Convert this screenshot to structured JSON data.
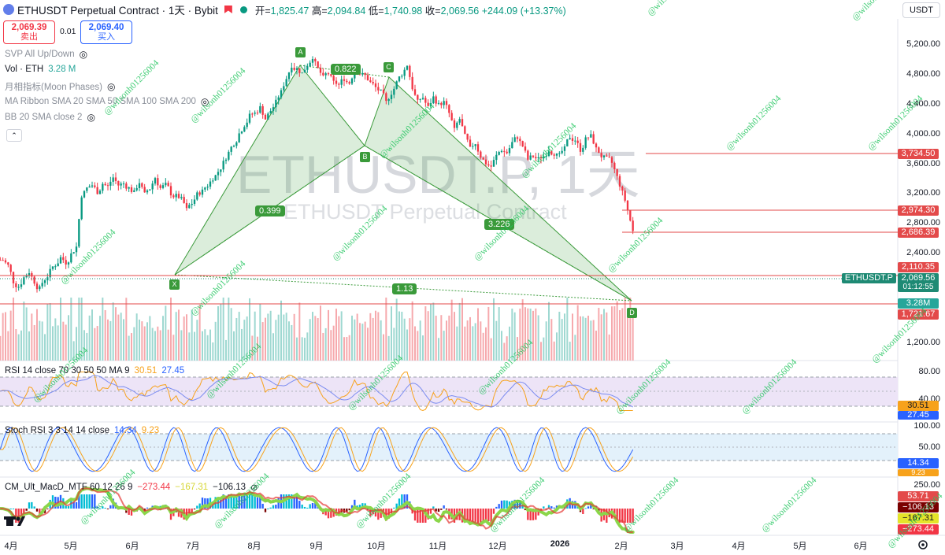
{
  "header": {
    "symbol": "ETHUSDT Perpetual Contract · 1天 · Bybit",
    "open_label": "开=",
    "open": "1,825.47",
    "high_label": "高=",
    "high": "2,094.84",
    "low_label": "低=",
    "low": "1,740.98",
    "close_label": "收=",
    "close": "2,069.56",
    "change": "+244.09 (+13.37%)",
    "currency": "USDT"
  },
  "order": {
    "sell_price": "2,069.39",
    "sell_label": "卖出",
    "spread": "0.01",
    "buy_price": "2,069.40",
    "buy_label": "买入"
  },
  "indicators": {
    "svp": "SVP All Up/Down",
    "vol_label": "Vol · ETH",
    "vol_value": "3.28 M",
    "moon": "月相指标(Moon Phases)",
    "ribbon": "MA Ribbon SMA 20 SMA 50 SMA 100 SMA 200",
    "bb": "BB 20 SMA close 2",
    "rsi_label": "RSI 14 close 70 30 50 50 MA 9",
    "rsi_v1": "30.51",
    "rsi_v2": "27.45",
    "stoch_label": "Stoch RSI 3 3 14 14 close",
    "stoch_v1": "14.34",
    "stoch_v2": "9.23",
    "macd_label": "CM_Ult_MacD_MTF 60 12 26 9",
    "macd_v1": "−273.44",
    "macd_v2": "−167.31",
    "macd_v3": "−106.13"
  },
  "watermark": {
    "big": "ETHUSDT.P, 1天",
    "small": "ETHUSDT Perpetual Contract",
    "user": "@wilsonh01256004"
  },
  "harmonic": {
    "points": [
      "X",
      "A",
      "B",
      "C",
      "D"
    ],
    "ratios": [
      "0.399",
      "0.822",
      "3.226",
      "1.13"
    ]
  },
  "price_axis": [
    "5,200.00",
    "4,800.00",
    "4,400.00",
    "4,000.00",
    "3,600.00",
    "3,200.00",
    "2,800.00",
    "2,400.00",
    "1,200.00"
  ],
  "price_tags": {
    "t1": "3,734.50",
    "t2": "2,974.30",
    "t3": "2,686.39",
    "t4": "2,110.35",
    "current_symbol": "ETHUSDT.P",
    "current": "2,069.56",
    "countdown": "01:12:55",
    "volume": "3.28M",
    "t5": "1,721.67"
  },
  "rsi_axis": [
    "80.00",
    "40.00"
  ],
  "rsi_tags": [
    "30.51",
    "27.45"
  ],
  "stoch_axis": [
    "100.00",
    "50.00"
  ],
  "stoch_tags": [
    "14.34",
    "9.23"
  ],
  "macd_axis": [
    "250.00"
  ],
  "macd_tags": [
    "53.71",
    "−106.13",
    "−167.31",
    "−273.44"
  ],
  "months": [
    "4月",
    "5月",
    "6月",
    "7月",
    "8月",
    "9月",
    "10月",
    "11月",
    "12月",
    "2026",
    "2月",
    "3月",
    "4月",
    "5月",
    "6月"
  ],
  "colors": {
    "up": "#089981",
    "down": "#f23645",
    "pattern": "#3a9a3a",
    "line_red": "#e34a4a"
  },
  "chart_data": {
    "type": "candlestick",
    "ohlc_current": {
      "open": 1825.47,
      "high": 2094.84,
      "low": 1740.98,
      "close": 2069.56
    },
    "close_path": [
      1800,
      1750,
      1620,
      1580,
      1650,
      1700,
      1620,
      1560,
      1640,
      1700,
      1760,
      1820,
      1780,
      1850,
      1920,
      2480,
      2560,
      2600,
      2520,
      2620,
      2580,
      2700,
      2600,
      2620,
      2560,
      2500,
      2640,
      2480,
      2560,
      2700,
      2560,
      2600,
      2500,
      2460,
      2420,
      2300,
      2380,
      2480,
      2520,
      2600,
      2700,
      2780,
      2900,
      3050,
      3200,
      3350,
      3500,
      3650,
      3700,
      3800,
      3600,
      3750,
      3900,
      4100,
      4400,
      4700,
      4600,
      4500,
      4700,
      4900,
      4600,
      4400,
      4500,
      4300,
      4250,
      4400,
      4300,
      4600,
      4500,
      4450,
      4300,
      4200,
      4100,
      3900,
      4100,
      4300,
      4500,
      4700,
      4200,
      3900,
      4000,
      3800,
      4000,
      3850,
      3900,
      3700,
      3400,
      3600,
      3300,
      3100,
      3200,
      3000,
      2900,
      2850,
      3000,
      3100,
      3050,
      3200,
      3300,
      3150,
      2950,
      3000,
      2950,
      3000,
      3100,
      3050,
      3000,
      3100,
      3300,
      3250,
      3100,
      3250,
      3300,
      3100,
      3000,
      2950,
      2900,
      2700,
      2500,
      2300,
      2069.56
    ],
    "lines": [
      3734.5,
      2974.3,
      2686.39,
      2110.35,
      1721.67
    ],
    "harmonic_xy": {
      "X": 2230,
      "A": 4950,
      "B": 3750,
      "C": 4750,
      "D": 1740
    },
    "price_range": [
      1000,
      5300
    ]
  }
}
